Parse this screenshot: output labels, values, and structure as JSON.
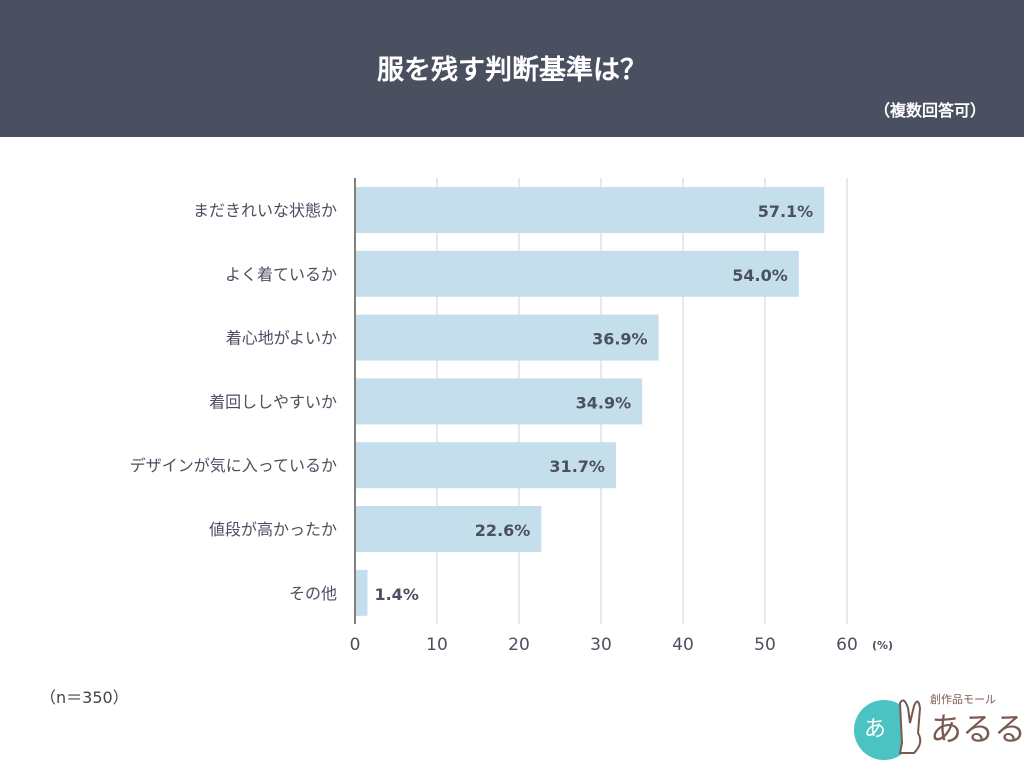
{
  "header": {
    "title": "服を残す判断基準は？",
    "subtitle": "（複数回答可）"
  },
  "note": "（n＝350）",
  "logo": {
    "text": "創作品モール あるる"
  },
  "colors": {
    "header": "#4b5060",
    "bar": "#c5deec",
    "grid": "#d0d0d0",
    "text": "#4b5060"
  },
  "chart_data": {
    "type": "bar",
    "orientation": "horizontal",
    "categories": [
      "まだきれいな状態か",
      "よく着ているか",
      "着心地がよいか",
      "着回ししやすいか",
      "デザインが気に入っているか",
      "値段が高かったか",
      "その他"
    ],
    "values": [
      57.1,
      54.0,
      36.9,
      34.9,
      31.7,
      22.6,
      1.4
    ],
    "data_labels": [
      "57.1%",
      "54.0%",
      "36.9%",
      "34.9%",
      "31.7%",
      "22.6%",
      "1.4%"
    ],
    "xlim": [
      0,
      60
    ],
    "xticks": [
      "0",
      "10",
      "20",
      "30",
      "40",
      "50",
      "60"
    ],
    "xunit": "(%)",
    "grid": true
  }
}
